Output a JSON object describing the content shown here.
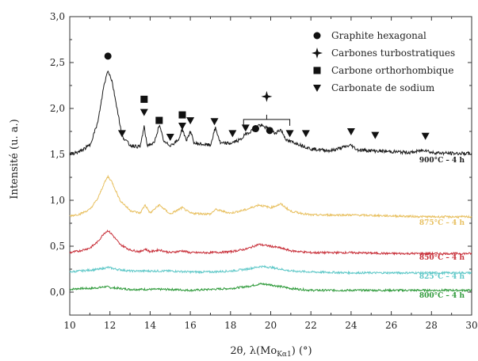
{
  "chart_data": {
    "type": "line",
    "xlabel": "2θ, λ(Mo",
    "xlabel_sub": "Kα1",
    "xlabel_tail": ") (°)",
    "ylabel": "Intensité (u. a.)",
    "xlim": [
      10,
      30
    ],
    "ylim": [
      -0.25,
      3.0
    ],
    "xticks": [
      "10",
      "12",
      "14",
      "16",
      "18",
      "20",
      "22",
      "24",
      "26",
      "28",
      "30"
    ],
    "yticks": [
      "0,0",
      "0,5",
      "1,0",
      "1,5",
      "2,0",
      "2,5",
      "3,0"
    ],
    "grid": false,
    "legend_position": "top-right",
    "legend": [
      {
        "marker": "circle",
        "label": "Graphite hexagonal"
      },
      {
        "marker": "star4",
        "label": "Carbones turbostratiques"
      },
      {
        "marker": "square",
        "label": "Carbone orthorhombique"
      },
      {
        "marker": "triangle-down",
        "label": "Carbonate de sodium"
      }
    ],
    "series": [
      {
        "name": "800°C – 4 h",
        "color": "#2e9a3a",
        "baseline": 0.0,
        "points": [
          [
            10,
            0.03
          ],
          [
            10.5,
            0.04
          ],
          [
            11,
            0.04
          ],
          [
            11.5,
            0.05
          ],
          [
            11.8,
            0.06
          ],
          [
            12,
            0.05
          ],
          [
            12.5,
            0.04
          ],
          [
            13,
            0.03
          ],
          [
            14,
            0.03
          ],
          [
            15,
            0.03
          ],
          [
            16,
            0.02
          ],
          [
            17,
            0.03
          ],
          [
            18,
            0.04
          ],
          [
            18.8,
            0.06
          ],
          [
            19.5,
            0.09
          ],
          [
            20,
            0.08
          ],
          [
            20.5,
            0.06
          ],
          [
            21,
            0.04
          ],
          [
            22,
            0.02
          ],
          [
            24,
            0.02
          ],
          [
            26,
            0.02
          ],
          [
            28,
            0.02
          ],
          [
            30,
            0.02
          ]
        ]
      },
      {
        "name": "825°C – 4 h",
        "color": "#5fc8c8",
        "baseline": 0.2,
        "points": [
          [
            10,
            0.22
          ],
          [
            10.5,
            0.23
          ],
          [
            11,
            0.24
          ],
          [
            11.5,
            0.25
          ],
          [
            11.9,
            0.27
          ],
          [
            12.3,
            0.25
          ],
          [
            13,
            0.23
          ],
          [
            14,
            0.23
          ],
          [
            15,
            0.23
          ],
          [
            16,
            0.22
          ],
          [
            17,
            0.22
          ],
          [
            18,
            0.23
          ],
          [
            18.8,
            0.25
          ],
          [
            19.5,
            0.28
          ],
          [
            20,
            0.27
          ],
          [
            20.5,
            0.25
          ],
          [
            21,
            0.23
          ],
          [
            22,
            0.22
          ],
          [
            24,
            0.21
          ],
          [
            26,
            0.21
          ],
          [
            28,
            0.21
          ],
          [
            30,
            0.21
          ]
        ]
      },
      {
        "name": "850°C – 4 h",
        "color": "#c8303a",
        "baseline": 0.4,
        "points": [
          [
            10,
            0.43
          ],
          [
            10.5,
            0.45
          ],
          [
            11,
            0.48
          ],
          [
            11.4,
            0.55
          ],
          [
            11.7,
            0.64
          ],
          [
            11.9,
            0.67
          ],
          [
            12.1,
            0.63
          ],
          [
            12.5,
            0.52
          ],
          [
            13,
            0.46
          ],
          [
            13.5,
            0.44
          ],
          [
            13.75,
            0.47
          ],
          [
            14,
            0.44
          ],
          [
            14.45,
            0.46
          ],
          [
            15,
            0.43
          ],
          [
            15.6,
            0.45
          ],
          [
            16,
            0.43
          ],
          [
            17,
            0.43
          ],
          [
            18,
            0.44
          ],
          [
            18.8,
            0.47
          ],
          [
            19.4,
            0.52
          ],
          [
            20,
            0.5
          ],
          [
            20.5,
            0.48
          ],
          [
            21,
            0.45
          ],
          [
            22,
            0.43
          ],
          [
            24,
            0.43
          ],
          [
            26,
            0.42
          ],
          [
            28,
            0.42
          ],
          [
            30,
            0.42
          ]
        ]
      },
      {
        "name": "875°C – 4 h",
        "color": "#e8c060",
        "baseline": 0.8,
        "points": [
          [
            10,
            0.83
          ],
          [
            10.5,
            0.85
          ],
          [
            11,
            0.9
          ],
          [
            11.4,
            1.02
          ],
          [
            11.7,
            1.18
          ],
          [
            11.9,
            1.26
          ],
          [
            12.1,
            1.2
          ],
          [
            12.5,
            1.0
          ],
          [
            13,
            0.89
          ],
          [
            13.5,
            0.86
          ],
          [
            13.75,
            0.95
          ],
          [
            14,
            0.86
          ],
          [
            14.45,
            0.95
          ],
          [
            15,
            0.85
          ],
          [
            15.6,
            0.92
          ],
          [
            16,
            0.86
          ],
          [
            17,
            0.85
          ],
          [
            17.25,
            0.9
          ],
          [
            18,
            0.86
          ],
          [
            18.8,
            0.9
          ],
          [
            19.4,
            0.95
          ],
          [
            20,
            0.92
          ],
          [
            20.5,
            0.96
          ],
          [
            21,
            0.88
          ],
          [
            22,
            0.84
          ],
          [
            24,
            0.84
          ],
          [
            26,
            0.83
          ],
          [
            28,
            0.82
          ],
          [
            30,
            0.82
          ]
        ]
      },
      {
        "name": "900°C – 4 h",
        "color": "#1a1a1a",
        "baseline": 1.5,
        "points": [
          [
            10,
            1.5
          ],
          [
            10.5,
            1.53
          ],
          [
            11,
            1.6
          ],
          [
            11.4,
            1.85
          ],
          [
            11.7,
            2.25
          ],
          [
            11.9,
            2.42
          ],
          [
            12.1,
            2.3
          ],
          [
            12.4,
            1.95
          ],
          [
            12.6,
            1.7
          ],
          [
            13,
            1.6
          ],
          [
            13.5,
            1.58
          ],
          [
            13.7,
            1.8
          ],
          [
            13.85,
            1.6
          ],
          [
            14.2,
            1.62
          ],
          [
            14.45,
            1.82
          ],
          [
            14.7,
            1.63
          ],
          [
            15,
            1.6
          ],
          [
            15.4,
            1.65
          ],
          [
            15.6,
            1.78
          ],
          [
            15.8,
            1.65
          ],
          [
            16.0,
            1.75
          ],
          [
            16.2,
            1.62
          ],
          [
            17,
            1.6
          ],
          [
            17.25,
            1.79
          ],
          [
            17.5,
            1.62
          ],
          [
            18,
            1.62
          ],
          [
            18.5,
            1.66
          ],
          [
            18.75,
            1.72
          ],
          [
            19,
            1.75
          ],
          [
            19.4,
            1.82
          ],
          [
            19.8,
            1.79
          ],
          [
            20.2,
            1.73
          ],
          [
            20.5,
            1.77
          ],
          [
            20.8,
            1.65
          ],
          [
            21.3,
            1.62
          ],
          [
            22,
            1.56
          ],
          [
            23,
            1.54
          ],
          [
            24,
            1.6
          ],
          [
            24.3,
            1.55
          ],
          [
            25,
            1.54
          ],
          [
            26,
            1.53
          ],
          [
            27,
            1.52
          ],
          [
            27.7,
            1.55
          ],
          [
            28,
            1.52
          ],
          [
            29,
            1.51
          ],
          [
            30,
            1.51
          ]
        ]
      }
    ],
    "markers": [
      {
        "type": "circle",
        "x": 11.9,
        "y": 2.57
      },
      {
        "type": "square",
        "x": 13.7,
        "y": 2.1
      },
      {
        "type": "square",
        "x": 14.45,
        "y": 1.87
      },
      {
        "type": "square",
        "x": 15.6,
        "y": 1.93
      },
      {
        "type": "triangle-down",
        "x": 12.6,
        "y": 1.73
      },
      {
        "type": "triangle-down",
        "x": 13.7,
        "y": 1.96
      },
      {
        "type": "triangle-down",
        "x": 15.0,
        "y": 1.69
      },
      {
        "type": "triangle-down",
        "x": 15.6,
        "y": 1.81
      },
      {
        "type": "triangle-down",
        "x": 16.0,
        "y": 1.87
      },
      {
        "type": "triangle-down",
        "x": 17.2,
        "y": 1.86
      },
      {
        "type": "triangle-down",
        "x": 18.1,
        "y": 1.73
      },
      {
        "type": "triangle-down",
        "x": 18.75,
        "y": 1.79
      },
      {
        "type": "triangle-down",
        "x": 20.95,
        "y": 1.73
      },
      {
        "type": "triangle-down",
        "x": 21.75,
        "y": 1.73
      },
      {
        "type": "triangle-down",
        "x": 24.0,
        "y": 1.75
      },
      {
        "type": "triangle-down",
        "x": 25.2,
        "y": 1.71
      },
      {
        "type": "triangle-down",
        "x": 27.7,
        "y": 1.7
      },
      {
        "type": "circle",
        "x": 19.25,
        "y": 1.78
      },
      {
        "type": "circle",
        "x": 19.95,
        "y": 1.76
      }
    ],
    "bracket": {
      "x_start": 18.65,
      "x_end": 20.95,
      "y": 1.88,
      "star_y": 2.13
    }
  }
}
